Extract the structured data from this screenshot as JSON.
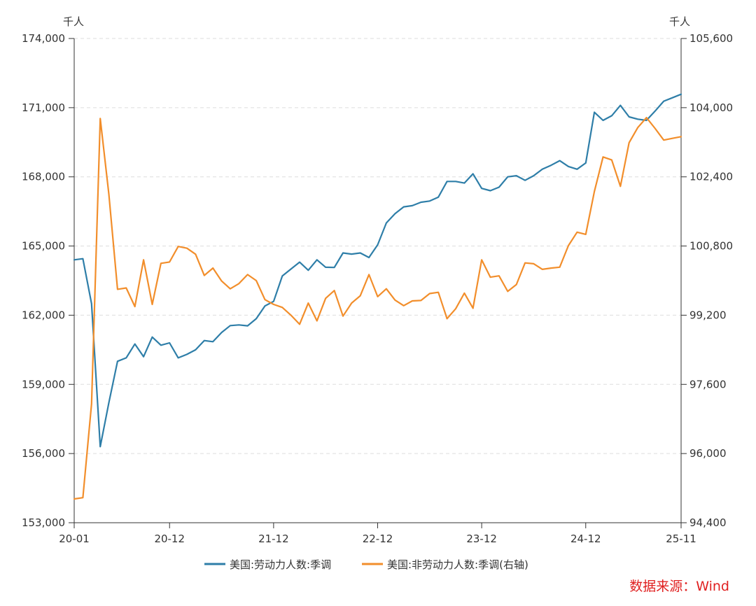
{
  "chart_data": {
    "type": "line",
    "left_unit": "千人",
    "right_unit": "千人",
    "left_axis": {
      "range": [
        153000,
        174000
      ],
      "ticks": [
        "153,000",
        "156,000",
        "159,000",
        "162,000",
        "165,000",
        "168,000",
        "171,000",
        "174,000"
      ],
      "tick_values": [
        153000,
        156000,
        159000,
        162000,
        165000,
        168000,
        171000,
        174000
      ]
    },
    "right_axis": {
      "range": [
        94400,
        105600
      ],
      "ticks": [
        "94,400",
        "96,000",
        "97,600",
        "99,200",
        "100,800",
        "102,400",
        "104,000",
        "105,600"
      ],
      "tick_values": [
        94400,
        96000,
        97600,
        99200,
        100800,
        102400,
        104000,
        105600
      ]
    },
    "x_ticks": [
      {
        "label": "20-01",
        "index": 0
      },
      {
        "label": "20-12",
        "index": 11
      },
      {
        "label": "21-12",
        "index": 23
      },
      {
        "label": "22-12",
        "index": 35
      },
      {
        "label": "23-12",
        "index": 47
      },
      {
        "label": "24-12",
        "index": 59
      },
      {
        "label": "25-11",
        "index": 70
      }
    ],
    "grid": true,
    "legend_position": "bottom",
    "series": [
      {
        "name": "美国:劳动力人数:季调",
        "axis": "left",
        "color": "#2e7ea8",
        "values": [
          164400,
          164450,
          162500,
          156300,
          158200,
          160000,
          160150,
          160750,
          160200,
          161050,
          160700,
          160800,
          160150,
          160300,
          160500,
          160900,
          160850,
          161250,
          161550,
          161580,
          161540,
          161850,
          162400,
          162600,
          163700,
          164000,
          164300,
          163950,
          164400,
          164080,
          164070,
          164700,
          164650,
          164700,
          164500,
          165050,
          166000,
          166400,
          166700,
          166750,
          166900,
          166950,
          167120,
          167800,
          167800,
          167730,
          168130,
          167500,
          167400,
          167550,
          168000,
          168050,
          167850,
          168050,
          168330,
          168500,
          168700,
          168450,
          168330,
          168600,
          170800,
          170450,
          170650,
          171100,
          170600,
          170500,
          170450,
          170850,
          171280,
          171430,
          171580
        ]
      },
      {
        "name": "美国:非劳动力人数:季调(右轴)",
        "axis": "right",
        "color": "#f28e2b",
        "values": [
          94950,
          94980,
          97150,
          103750,
          102000,
          99800,
          99830,
          99400,
          100480,
          99450,
          100400,
          100430,
          100790,
          100750,
          100610,
          100120,
          100290,
          99990,
          99810,
          99930,
          100140,
          100000,
          99560,
          99450,
          99380,
          99200,
          98990,
          99480,
          99070,
          99590,
          99770,
          99180,
          99480,
          99650,
          100140,
          99630,
          99810,
          99550,
          99420,
          99530,
          99540,
          99700,
          99730,
          99120,
          99350,
          99710,
          99360,
          100480,
          100080,
          100110,
          99750,
          99910,
          100410,
          100390,
          100260,
          100290,
          100310,
          100810,
          101120,
          101070,
          102060,
          102860,
          102790,
          102180,
          103190,
          103540,
          103770,
          103520,
          103250,
          103290,
          103330
        ]
      }
    ]
  },
  "legend": {
    "item1": "美国:劳动力人数:季调",
    "item2": "美国:非劳动力人数:季调(右轴)"
  },
  "source": "数据来源：Wind"
}
